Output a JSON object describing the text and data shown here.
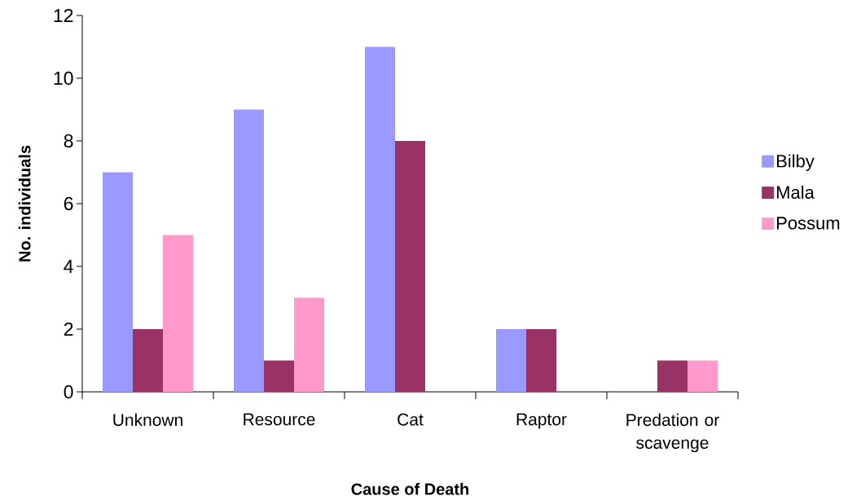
{
  "chart_data": {
    "type": "bar",
    "xlabel": "Cause of Death",
    "ylabel": "No. individuals",
    "categories": [
      "Unknown",
      "Resource",
      "Cat",
      "Raptor",
      "Predation or scavenge"
    ],
    "series": [
      {
        "name": "Bilby",
        "color": "#9999ff",
        "values": [
          7,
          9,
          11,
          2,
          null
        ]
      },
      {
        "name": "Mala",
        "color": "#993366",
        "values": [
          2,
          1,
          8,
          2,
          1
        ]
      },
      {
        "name": "Possum",
        "color": "#ff99cc",
        "values": [
          5,
          3,
          null,
          null,
          1
        ]
      }
    ],
    "ylim": [
      0,
      12
    ],
    "yticks": [
      0,
      2,
      4,
      6,
      8,
      10,
      12
    ],
    "legend": "right"
  }
}
